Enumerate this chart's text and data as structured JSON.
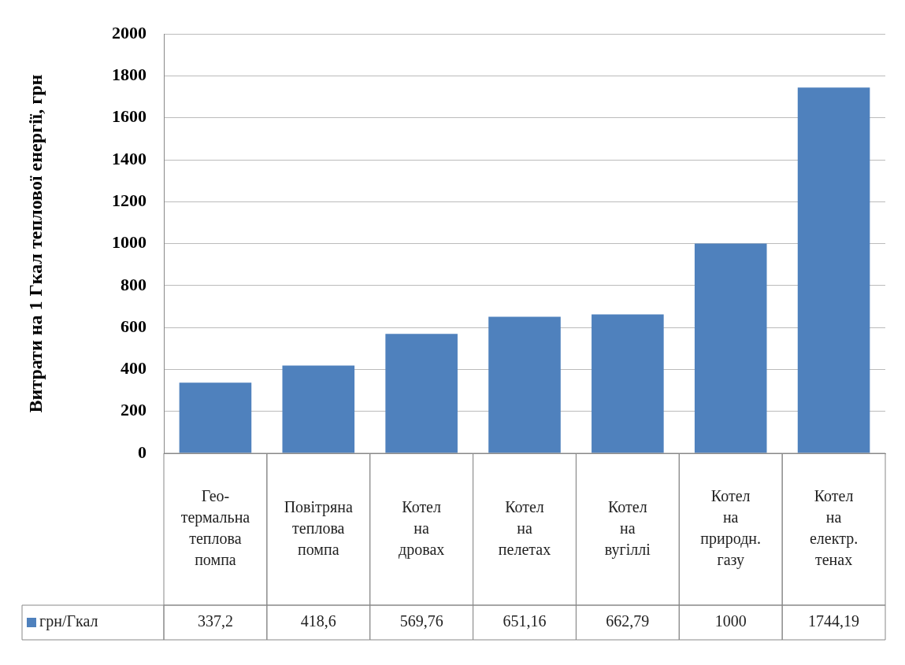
{
  "chart_data": {
    "type": "bar",
    "ylabel": "Витрати на 1 Гкал теплової енергії, грн",
    "categories": [
      "Гео-термальна теплова помпа",
      "Повітряна теплова помпа",
      "Котел на дровах",
      "Котел на пелетах",
      "Котел на вугіллі",
      "Котел на природн. газу",
      "Котел на електр. тенах"
    ],
    "series": [
      {
        "name": "грн/Гкал",
        "color": "#4f81bd",
        "values": [
          337.2,
          418.6,
          569.76,
          651.16,
          662.79,
          1000,
          1744.19
        ],
        "value_labels": [
          "337,2",
          "418,6",
          "569,76",
          "651,16",
          "662,79",
          "1000",
          "1744,19"
        ]
      }
    ],
    "ylim": [
      0,
      2000
    ],
    "yticks": [
      0,
      200,
      400,
      600,
      800,
      1000,
      1200,
      1400,
      1600,
      1800,
      2000
    ],
    "grid": "y",
    "legend": "bottom"
  }
}
